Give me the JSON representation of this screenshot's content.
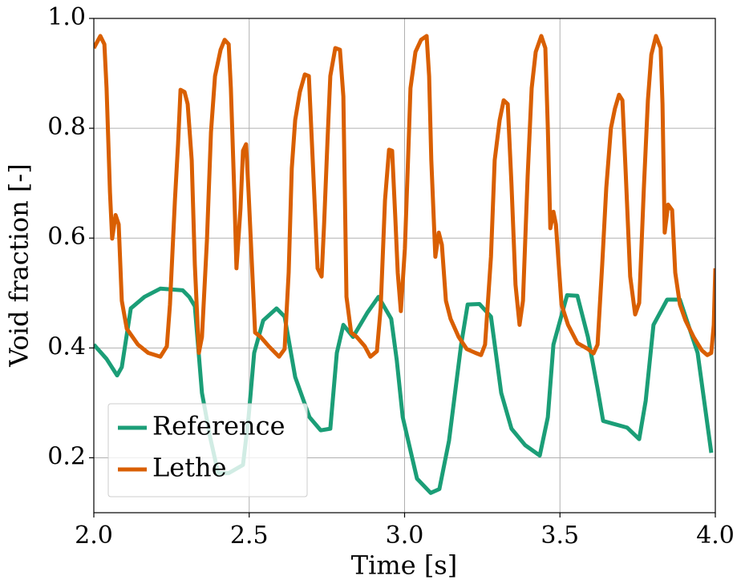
{
  "chart_data": {
    "type": "line",
    "xlabel": "Time [s]",
    "ylabel": "Void fraction [-]",
    "xlim": [
      2.0,
      4.0
    ],
    "ylim": [
      0.1,
      1.0
    ],
    "xticks": [
      {
        "value": 2,
        "label": "2.0"
      },
      2.5,
      {
        "value": 3,
        "label": "3.0"
      },
      3.5,
      {
        "value": 4,
        "label": "4.0"
      }
    ],
    "yticks": [
      0.2,
      0.4,
      0.6,
      0.8,
      {
        "value": 1,
        "label": "1.0"
      }
    ],
    "grid": true,
    "legend": "lower left",
    "series": [
      {
        "name": "Reference",
        "color": "#1b9e77",
        "x": [
          2.0,
          2.041,
          2.075,
          2.09,
          2.119,
          2.163,
          2.214,
          2.286,
          2.307,
          2.325,
          2.348,
          2.374,
          2.4,
          2.434,
          2.48,
          2.498,
          2.516,
          2.545,
          2.588,
          2.614,
          2.648,
          2.694,
          2.73,
          2.761,
          2.782,
          2.803,
          2.834,
          2.88,
          2.916,
          2.957,
          2.975,
          2.994,
          3.04,
          3.084,
          3.112,
          3.143,
          3.182,
          3.203,
          3.241,
          3.278,
          3.311,
          3.344,
          3.388,
          3.435,
          3.461,
          3.479,
          3.523,
          3.556,
          3.59,
          3.621,
          3.639,
          3.716,
          3.755,
          3.776,
          3.801,
          3.845,
          3.886,
          3.943,
          3.987
        ],
        "values": [
          0.406,
          0.38,
          0.35,
          0.365,
          0.472,
          0.493,
          0.508,
          0.505,
          0.493,
          0.476,
          0.318,
          0.238,
          0.172,
          0.172,
          0.187,
          0.274,
          0.391,
          0.45,
          0.472,
          0.457,
          0.347,
          0.274,
          0.25,
          0.253,
          0.391,
          0.442,
          0.42,
          0.464,
          0.493,
          0.453,
          0.377,
          0.274,
          0.162,
          0.136,
          0.143,
          0.231,
          0.406,
          0.479,
          0.48,
          0.457,
          0.318,
          0.253,
          0.223,
          0.204,
          0.274,
          0.406,
          0.496,
          0.495,
          0.42,
          0.326,
          0.267,
          0.255,
          0.234,
          0.304,
          0.442,
          0.488,
          0.488,
          0.391,
          0.209
        ]
      },
      {
        "name": "Lethe",
        "color": "#d95f02",
        "x": [
          2.0,
          2.021,
          2.034,
          2.041,
          2.052,
          2.059,
          2.07,
          2.08,
          2.09,
          2.106,
          2.142,
          2.175,
          2.214,
          2.235,
          2.245,
          2.261,
          2.271,
          2.279,
          2.292,
          2.302,
          2.315,
          2.325,
          2.338,
          2.348,
          2.364,
          2.377,
          2.39,
          2.408,
          2.421,
          2.434,
          2.441,
          2.452,
          2.459,
          2.472,
          2.48,
          2.49,
          2.498,
          2.519,
          2.537,
          2.563,
          2.596,
          2.614,
          2.627,
          2.637,
          2.648,
          2.663,
          2.679,
          2.692,
          2.705,
          2.72,
          2.733,
          2.741,
          2.752,
          2.761,
          2.777,
          2.792,
          2.803,
          2.813,
          2.828,
          2.846,
          2.872,
          2.89,
          2.911,
          2.923,
          2.937,
          2.95,
          2.96,
          2.97,
          2.978,
          2.988,
          3.001,
          3.012,
          3.019,
          3.035,
          3.053,
          3.071,
          3.079,
          3.086,
          3.099,
          3.11,
          3.12,
          3.133,
          3.148,
          3.174,
          3.2,
          3.228,
          3.246,
          3.259,
          3.278,
          3.29,
          3.306,
          3.319,
          3.332,
          3.344,
          3.357,
          3.37,
          3.381,
          3.396,
          3.409,
          3.422,
          3.44,
          3.453,
          3.461,
          3.469,
          3.479,
          3.487,
          3.505,
          3.526,
          3.556,
          3.59,
          3.608,
          3.621,
          3.636,
          3.649,
          3.664,
          3.677,
          3.69,
          3.701,
          3.711,
          3.726,
          3.742,
          3.755,
          3.77,
          3.783,
          3.794,
          3.809,
          3.824,
          3.83,
          3.837,
          3.848,
          3.861,
          3.871,
          3.886,
          3.904,
          3.93,
          3.956,
          3.974,
          3.987,
          3.995,
          4.0
        ],
        "values": [
          0.946,
          0.968,
          0.953,
          0.873,
          0.683,
          0.599,
          0.642,
          0.625,
          0.486,
          0.435,
          0.406,
          0.391,
          0.384,
          0.403,
          0.479,
          0.669,
          0.771,
          0.87,
          0.866,
          0.844,
          0.742,
          0.552,
          0.391,
          0.42,
          0.596,
          0.793,
          0.895,
          0.943,
          0.961,
          0.953,
          0.873,
          0.683,
          0.545,
          0.654,
          0.759,
          0.771,
          0.683,
          0.428,
          0.42,
          0.403,
          0.384,
          0.398,
          0.537,
          0.727,
          0.815,
          0.866,
          0.898,
          0.895,
          0.734,
          0.545,
          0.53,
          0.625,
          0.778,
          0.895,
          0.946,
          0.943,
          0.858,
          0.493,
          0.428,
          0.42,
          0.403,
          0.384,
          0.394,
          0.472,
          0.669,
          0.761,
          0.759,
          0.639,
          0.537,
          0.467,
          0.581,
          0.756,
          0.873,
          0.939,
          0.961,
          0.968,
          0.895,
          0.742,
          0.566,
          0.61,
          0.588,
          0.486,
          0.453,
          0.42,
          0.398,
          0.391,
          0.387,
          0.406,
          0.566,
          0.742,
          0.815,
          0.851,
          0.844,
          0.698,
          0.515,
          0.442,
          0.486,
          0.712,
          0.873,
          0.939,
          0.968,
          0.946,
          0.8,
          0.618,
          0.648,
          0.625,
          0.479,
          0.442,
          0.409,
          0.398,
          0.39,
          0.406,
          0.552,
          0.691,
          0.8,
          0.836,
          0.861,
          0.851,
          0.727,
          0.53,
          0.461,
          0.482,
          0.691,
          0.851,
          0.934,
          0.968,
          0.946,
          0.844,
          0.61,
          0.661,
          0.651,
          0.537,
          0.479,
          0.45,
          0.42,
          0.396,
          0.387,
          0.391,
          0.442,
          0.545
        ]
      }
    ]
  }
}
